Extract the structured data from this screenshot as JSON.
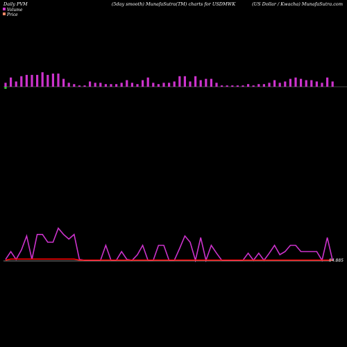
{
  "header": {
    "left": "Daily PVM",
    "center": "(5day smooth) MunafaSutra(TM) charts for USDMWK",
    "right": "(US Dollar / Kwacha) MunafaSutra.com"
  },
  "legend": {
    "volume_label": "Volume",
    "price_label": "Price",
    "volume_color": "#cc33cc",
    "price_color": "#ff8866"
  },
  "chart_data": [
    {
      "type": "bar",
      "title": "",
      "series": [
        {
          "name": "Volume",
          "values": [
            0.15,
            0.35,
            0.2,
            0.4,
            0.45,
            0.45,
            0.45,
            0.55,
            0.45,
            0.5,
            0.5,
            0.3,
            0.15,
            0.1,
            0.05,
            0.05,
            0.2,
            0.15,
            0.15,
            0.1,
            0.1,
            0.1,
            0.15,
            0.25,
            0.15,
            0.1,
            0.25,
            0.35,
            0.15,
            0.1,
            0.15,
            0.15,
            0.2,
            0.4,
            0.4,
            0.2,
            0.4,
            0.25,
            0.3,
            0.3,
            0.15,
            0.05,
            0.05,
            0.05,
            0.05,
            0.05,
            0.1,
            0.05,
            0.1,
            0.1,
            0.15,
            0.25,
            0.15,
            0.2,
            0.3,
            0.35,
            0.3,
            0.25,
            0.25,
            0.2,
            0.15,
            0.35,
            0.2
          ],
          "color": "#cc33cc"
        }
      ],
      "first_bar_color": "#33cc33"
    },
    {
      "type": "line",
      "title": "",
      "price_label": "84.885",
      "series": [
        {
          "name": "Volume",
          "color": "#cc33cc",
          "values": [
            0.05,
            0.3,
            0.05,
            0.35,
            0.8,
            0.05,
            0.85,
            0.85,
            0.6,
            0.6,
            1.05,
            0.85,
            0.7,
            0.85,
            0.05,
            0.02,
            0.02,
            0.02,
            0.02,
            0.5,
            0.02,
            0.02,
            0.3,
            0.05,
            0.02,
            0.2,
            0.5,
            0.02,
            0.02,
            0.5,
            0.5,
            0.02,
            0.02,
            0.4,
            0.8,
            0.6,
            0.02,
            0.75,
            0.02,
            0.5,
            0.25,
            0.02,
            0.02,
            0.02,
            0.02,
            0.02,
            0.25,
            0.02,
            0.25,
            0.02,
            0.25,
            0.5,
            0.2,
            0.3,
            0.5,
            0.5,
            0.3,
            0.3,
            0.3,
            0.3,
            0.02,
            0.75,
            0.02
          ]
        },
        {
          "name": "Price",
          "color": "#ff0000",
          "values": [
            84.885,
            84.886,
            84.886,
            84.886,
            84.886,
            84.886,
            84.886,
            84.886,
            84.886,
            84.886,
            84.886,
            84.886,
            84.886,
            84.886,
            84.885,
            84.885,
            84.885,
            84.885,
            84.885,
            84.885,
            84.885,
            84.885,
            84.885,
            84.885,
            84.885,
            84.885,
            84.885,
            84.885,
            84.885,
            84.885,
            84.885,
            84.885,
            84.885,
            84.885,
            84.885,
            84.885,
            84.885,
            84.885,
            84.885,
            84.885,
            84.885,
            84.885,
            84.885,
            84.885,
            84.885,
            84.885,
            84.885,
            84.885,
            84.885,
            84.885,
            84.885,
            84.885,
            84.885,
            84.885,
            84.885,
            84.885,
            84.885,
            84.885,
            84.885,
            84.885,
            84.885,
            84.885,
            84.885
          ]
        }
      ]
    }
  ]
}
